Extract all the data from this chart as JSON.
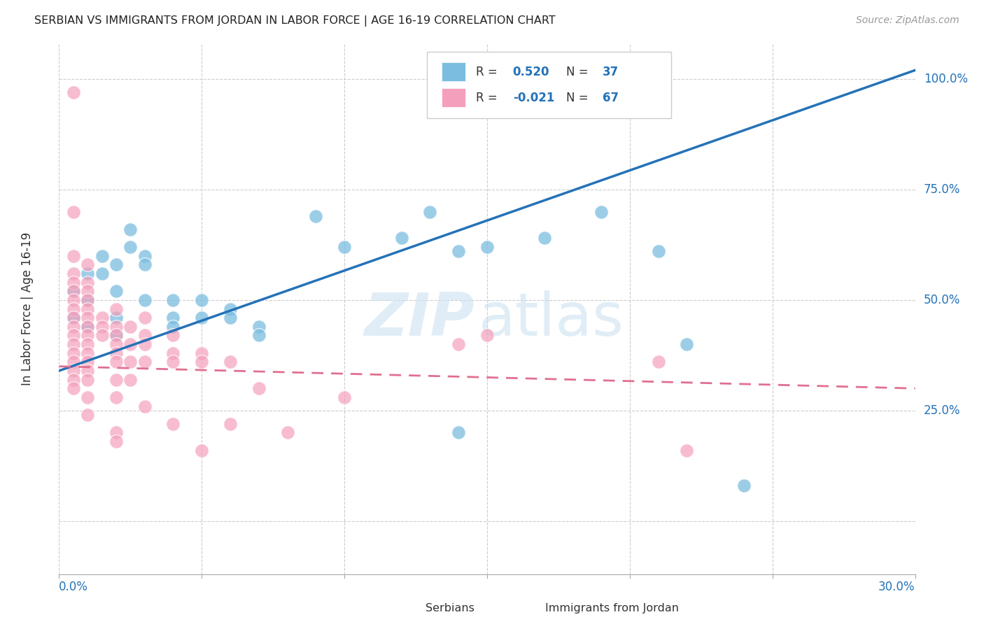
{
  "title": "SERBIAN VS IMMIGRANTS FROM JORDAN IN LABOR FORCE | AGE 16-19 CORRELATION CHART",
  "source": "Source: ZipAtlas.com",
  "ylabel": "In Labor Force | Age 16-19",
  "blue_color": "#7bbde0",
  "pink_color": "#f4a0bc",
  "blue_line_color": "#2472b8",
  "pink_line_color": "#e07090",
  "xmin": 0.0,
  "xmax": 0.3,
  "ymin": -0.12,
  "ymax": 1.08,
  "ytick_positions": [
    0.0,
    0.25,
    0.5,
    0.75,
    1.0
  ],
  "ytick_labels": [
    "",
    "25.0%",
    "50.0%",
    "75.0%",
    "100.0%"
  ],
  "xtick_positions": [
    0.0,
    0.05,
    0.1,
    0.15,
    0.2,
    0.25,
    0.3
  ],
  "blue_line": [
    0.0,
    0.34,
    0.3,
    1.02
  ],
  "pink_line": [
    0.0,
    0.35,
    0.3,
    0.3
  ],
  "blue_points": [
    [
      0.005,
      0.46
    ],
    [
      0.005,
      0.52
    ],
    [
      0.01,
      0.5
    ],
    [
      0.01,
      0.44
    ],
    [
      0.01,
      0.56
    ],
    [
      0.015,
      0.6
    ],
    [
      0.015,
      0.56
    ],
    [
      0.02,
      0.58
    ],
    [
      0.02,
      0.52
    ],
    [
      0.02,
      0.46
    ],
    [
      0.02,
      0.42
    ],
    [
      0.025,
      0.62
    ],
    [
      0.025,
      0.66
    ],
    [
      0.03,
      0.6
    ],
    [
      0.03,
      0.58
    ],
    [
      0.03,
      0.5
    ],
    [
      0.04,
      0.5
    ],
    [
      0.04,
      0.46
    ],
    [
      0.04,
      0.44
    ],
    [
      0.05,
      0.5
    ],
    [
      0.05,
      0.46
    ],
    [
      0.06,
      0.48
    ],
    [
      0.06,
      0.46
    ],
    [
      0.07,
      0.44
    ],
    [
      0.07,
      0.42
    ],
    [
      0.09,
      0.69
    ],
    [
      0.1,
      0.62
    ],
    [
      0.12,
      0.64
    ],
    [
      0.13,
      0.7
    ],
    [
      0.14,
      0.61
    ],
    [
      0.15,
      0.62
    ],
    [
      0.17,
      0.64
    ],
    [
      0.19,
      0.7
    ],
    [
      0.21,
      0.61
    ],
    [
      0.22,
      0.4
    ],
    [
      0.14,
      0.2
    ],
    [
      0.24,
      0.08
    ]
  ],
  "pink_points": [
    [
      0.005,
      0.97
    ],
    [
      0.005,
      0.7
    ],
    [
      0.005,
      0.6
    ],
    [
      0.005,
      0.56
    ],
    [
      0.005,
      0.54
    ],
    [
      0.005,
      0.52
    ],
    [
      0.005,
      0.5
    ],
    [
      0.005,
      0.48
    ],
    [
      0.005,
      0.46
    ],
    [
      0.005,
      0.44
    ],
    [
      0.005,
      0.42
    ],
    [
      0.005,
      0.4
    ],
    [
      0.005,
      0.38
    ],
    [
      0.005,
      0.36
    ],
    [
      0.005,
      0.34
    ],
    [
      0.005,
      0.32
    ],
    [
      0.005,
      0.3
    ],
    [
      0.01,
      0.58
    ],
    [
      0.01,
      0.54
    ],
    [
      0.01,
      0.52
    ],
    [
      0.01,
      0.5
    ],
    [
      0.01,
      0.48
    ],
    [
      0.01,
      0.46
    ],
    [
      0.01,
      0.44
    ],
    [
      0.01,
      0.42
    ],
    [
      0.01,
      0.4
    ],
    [
      0.01,
      0.38
    ],
    [
      0.01,
      0.36
    ],
    [
      0.01,
      0.34
    ],
    [
      0.01,
      0.32
    ],
    [
      0.01,
      0.28
    ],
    [
      0.01,
      0.24
    ],
    [
      0.015,
      0.46
    ],
    [
      0.015,
      0.44
    ],
    [
      0.015,
      0.42
    ],
    [
      0.02,
      0.48
    ],
    [
      0.02,
      0.44
    ],
    [
      0.02,
      0.42
    ],
    [
      0.02,
      0.4
    ],
    [
      0.02,
      0.38
    ],
    [
      0.02,
      0.36
    ],
    [
      0.02,
      0.32
    ],
    [
      0.02,
      0.28
    ],
    [
      0.025,
      0.44
    ],
    [
      0.025,
      0.4
    ],
    [
      0.025,
      0.36
    ],
    [
      0.025,
      0.32
    ],
    [
      0.03,
      0.46
    ],
    [
      0.03,
      0.42
    ],
    [
      0.03,
      0.4
    ],
    [
      0.03,
      0.36
    ],
    [
      0.04,
      0.42
    ],
    [
      0.04,
      0.38
    ],
    [
      0.04,
      0.36
    ],
    [
      0.05,
      0.38
    ],
    [
      0.05,
      0.36
    ],
    [
      0.06,
      0.36
    ],
    [
      0.02,
      0.2
    ],
    [
      0.02,
      0.18
    ],
    [
      0.03,
      0.26
    ],
    [
      0.04,
      0.22
    ],
    [
      0.05,
      0.16
    ],
    [
      0.06,
      0.22
    ],
    [
      0.07,
      0.3
    ],
    [
      0.08,
      0.2
    ],
    [
      0.1,
      0.28
    ],
    [
      0.14,
      0.4
    ],
    [
      0.21,
      0.36
    ],
    [
      0.22,
      0.16
    ],
    [
      0.15,
      0.42
    ]
  ]
}
